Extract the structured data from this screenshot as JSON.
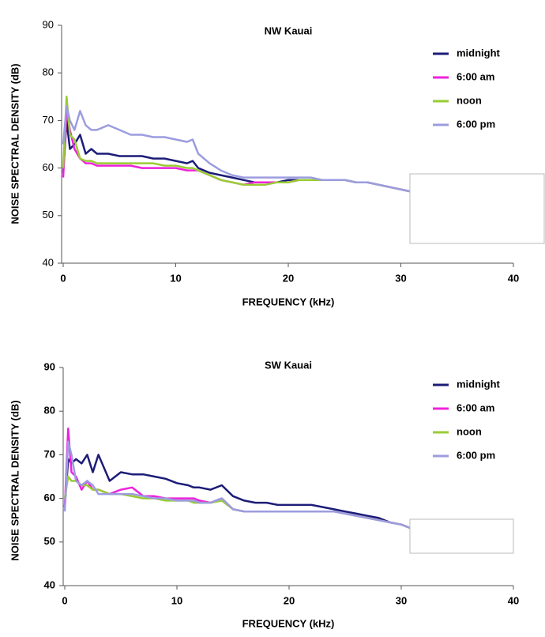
{
  "chart_data": [
    {
      "type": "line",
      "title": "NW Kauai",
      "x_label": "FREQUENCY (kHz)",
      "y_label": "NOISE SPECTRAL DENSITY (dB)",
      "xlim": [
        0,
        40
      ],
      "xticks": [
        0,
        10,
        20,
        30,
        40
      ],
      "ylim": [
        40,
        90
      ],
      "yticks": [
        40,
        50,
        60,
        70,
        80,
        90
      ],
      "legend": "top-right",
      "x": [
        0,
        0.3,
        0.6,
        1,
        1.5,
        2,
        2.5,
        3,
        4,
        5,
        6,
        7,
        8,
        9,
        10,
        11,
        11.5,
        12,
        13,
        14,
        15,
        16,
        17,
        18,
        19,
        20,
        21,
        22,
        23,
        24,
        25,
        26,
        27,
        28,
        29,
        30,
        31
      ],
      "series": [
        {
          "name": "midnight",
          "color": "#1c1c78",
          "text_color": "#1c1c78",
          "values": [
            59,
            70,
            64,
            65,
            67,
            63,
            64,
            63,
            63,
            62.5,
            62.5,
            62.5,
            62,
            62,
            61.5,
            61,
            61.5,
            60,
            59,
            58.5,
            58,
            57.5,
            57,
            57,
            57,
            57.5,
            57.5,
            57.5,
            57.5,
            57.5,
            57.5,
            57,
            57,
            56.5,
            56,
            55.5,
            55
          ]
        },
        {
          "name": "6:00 am",
          "color": "#ee22dd",
          "text_color": "#b0103a",
          "values": [
            58,
            72,
            68,
            64,
            62,
            61,
            61,
            60.5,
            60.5,
            60.5,
            60.5,
            60,
            60,
            60,
            60,
            59.5,
            59.5,
            59.5,
            58.5,
            57.5,
            57,
            56.5,
            57,
            57,
            57,
            57,
            57.5,
            57.5,
            57.5,
            57.5,
            57.5,
            57,
            57,
            56.5,
            56,
            55.5,
            55
          ]
        },
        {
          "name": "noon",
          "color": "#99cc33",
          "text_color": "#99cc33",
          "values": [
            60,
            75,
            67,
            66,
            62,
            61.5,
            61.5,
            61,
            61,
            61,
            61,
            61,
            61,
            60.5,
            60.5,
            60,
            60,
            59.5,
            58.5,
            57.5,
            57,
            56.5,
            56.5,
            56.5,
            57,
            57,
            57.5,
            57.5,
            57.5,
            57.5,
            57.5,
            57,
            57,
            56.5,
            56,
            55.5,
            55
          ]
        },
        {
          "name": "6:00 pm",
          "color": "#9c9ce0",
          "text_color": "#7a7aaa",
          "values": [
            65,
            73,
            70,
            68,
            72,
            69,
            68,
            68,
            69,
            68,
            67,
            67,
            66.5,
            66.5,
            66,
            65.5,
            66,
            63,
            61,
            59.5,
            58.5,
            58,
            58,
            58,
            58,
            58,
            58,
            58,
            57.5,
            57.5,
            57.5,
            57,
            57,
            56.5,
            56,
            55.5,
            55
          ]
        }
      ]
    },
    {
      "type": "line",
      "title": "SW Kauai",
      "x_label": "FREQUENCY (kHz)",
      "y_label": "NOISE SPECTRAL DENSITY (dB)",
      "xlim": [
        0,
        40
      ],
      "xticks": [
        0,
        10,
        20,
        30,
        40
      ],
      "ylim": [
        40,
        90
      ],
      "yticks": [
        40,
        50,
        60,
        70,
        80,
        90
      ],
      "legend": "top-right",
      "x": [
        0,
        0.3,
        0.6,
        1,
        1.5,
        2,
        2.5,
        3,
        4,
        5,
        6,
        7,
        8,
        9,
        10,
        11,
        11.5,
        12,
        13,
        14,
        15,
        16,
        17,
        18,
        19,
        20,
        21,
        22,
        23,
        24,
        25,
        26,
        27,
        28,
        29,
        30,
        31
      ],
      "series": [
        {
          "name": "midnight",
          "color": "#1c1c78",
          "text_color": "#1c1c78",
          "values": [
            58,
            69,
            68,
            69,
            68,
            70,
            66,
            70,
            64,
            66,
            65.5,
            65.5,
            65,
            64.5,
            63.5,
            63,
            62.5,
            62.5,
            62,
            63,
            60.5,
            59.5,
            59,
            59,
            58.5,
            58.5,
            58.5,
            58.5,
            58,
            57.5,
            57,
            56.5,
            56,
            55.5,
            54.5,
            54,
            53
          ]
        },
        {
          "name": "6:00 am",
          "color": "#ee22dd",
          "text_color": "#b0103a",
          "values": [
            58,
            76,
            66,
            65,
            62,
            64,
            62,
            62,
            61,
            62,
            62.5,
            60.5,
            60.5,
            60,
            60,
            60,
            60,
            59.5,
            59,
            60,
            57.5,
            57,
            57,
            57,
            57,
            57,
            57,
            57,
            57,
            57,
            56.5,
            56,
            55.5,
            55,
            54.5,
            54,
            53
          ]
        },
        {
          "name": "noon",
          "color": "#99cc33",
          "text_color": "#99cc33",
          "values": [
            60,
            65,
            64,
            64,
            63,
            63,
            62,
            62,
            61,
            61,
            60.5,
            60,
            60,
            59.5,
            59.5,
            59.5,
            59,
            59,
            59,
            59.5,
            57.5,
            57,
            57,
            57,
            57,
            57,
            57,
            57,
            57,
            57,
            56.5,
            56,
            55.5,
            55,
            54.5,
            54,
            53
          ]
        },
        {
          "name": "6:00 pm",
          "color": "#9c9ce0",
          "text_color": "#7a7aaa",
          "values": [
            57,
            73,
            70,
            64,
            63,
            64,
            63,
            61,
            61,
            61,
            61,
            60.5,
            60,
            60,
            59.5,
            59.5,
            59.5,
            59,
            59,
            60,
            57.5,
            57,
            57,
            57,
            57,
            57,
            57,
            57,
            57,
            57,
            56.5,
            56,
            55.5,
            55,
            54.5,
            54,
            53
          ]
        }
      ]
    }
  ]
}
